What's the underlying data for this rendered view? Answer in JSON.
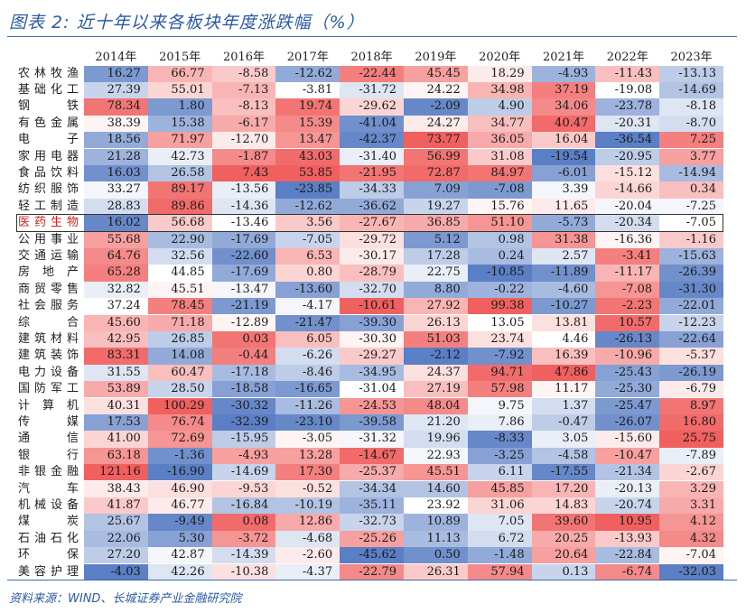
{
  "title": "图表 2:  近十年以来各板块年度涨跌幅（%）",
  "source": "资料来源：WIND、长城证券产业金融研究院",
  "chart_data": {
    "type": "heatmap",
    "highlight_row": "医药生物",
    "columns": [
      "2014年",
      "2015年",
      "2016年",
      "2017年",
      "2018年",
      "2019年",
      "2020年",
      "2021年",
      "2022年",
      "2023年"
    ],
    "rows": [
      {
        "name": "农林牧渔",
        "values": [
          16.27,
          66.77,
          -8.58,
          -12.62,
          -22.44,
          45.45,
          18.29,
          -4.93,
          -11.43,
          -13.13
        ]
      },
      {
        "name": "基础化工",
        "values": [
          27.39,
          55.01,
          -7.13,
          -3.81,
          -31.72,
          24.22,
          34.98,
          37.19,
          -19.08,
          -14.69
        ]
      },
      {
        "name": "钢铁",
        "values": [
          78.34,
          1.8,
          -8.13,
          19.74,
          -29.62,
          -2.09,
          4.9,
          34.06,
          -23.78,
          -8.18
        ]
      },
      {
        "name": "有色金属",
        "values": [
          38.39,
          15.38,
          -6.17,
          15.39,
          -41.04,
          24.27,
          34.77,
          40.47,
          -20.31,
          -8.7
        ]
      },
      {
        "name": "电子",
        "values": [
          18.56,
          71.97,
          -12.7,
          13.47,
          -42.37,
          73.77,
          36.05,
          16.04,
          -36.54,
          7.25
        ]
      },
      {
        "name": "家用电器",
        "values": [
          21.28,
          42.73,
          -1.87,
          43.03,
          -31.4,
          56.99,
          31.08,
          -19.54,
          -20.95,
          3.77
        ]
      },
      {
        "name": "食品饮料",
        "values": [
          16.03,
          26.58,
          7.43,
          53.85,
          -21.95,
          72.87,
          84.97,
          -6.01,
          -15.12,
          -14.94
        ]
      },
      {
        "name": "纺织服饰",
        "values": [
          33.27,
          89.17,
          -13.56,
          -23.85,
          -34.33,
          7.09,
          -7.08,
          3.39,
          -14.66,
          0.34
        ]
      },
      {
        "name": "轻工制造",
        "values": [
          28.83,
          89.86,
          -14.36,
          -12.62,
          -36.62,
          19.27,
          15.76,
          11.65,
          -20.04,
          -7.25
        ]
      },
      {
        "name": "医药生物",
        "values": [
          16.02,
          56.68,
          -13.46,
          3.56,
          -27.67,
          36.85,
          51.1,
          -5.73,
          -20.34,
          -7.05
        ]
      },
      {
        "name": "公用事业",
        "values": [
          55.68,
          22.9,
          -17.69,
          -7.05,
          -29.72,
          5.12,
          0.98,
          31.38,
          -16.36,
          -1.16
        ]
      },
      {
        "name": "交通运输",
        "values": [
          64.76,
          32.56,
          -22.6,
          6.53,
          -30.17,
          17.28,
          0.24,
          2.57,
          -3.41,
          -15.63
        ]
      },
      {
        "name": "房地产",
        "values": [
          65.28,
          44.85,
          -17.69,
          0.8,
          -28.79,
          22.75,
          -10.85,
          -11.89,
          -11.17,
          -26.39
        ]
      },
      {
        "name": "商贸零售",
        "values": [
          32.82,
          45.51,
          -13.47,
          -13.6,
          -32.7,
          8.8,
          -0.22,
          -4.6,
          -7.08,
          -31.3
        ]
      },
      {
        "name": "社会服务",
        "values": [
          37.24,
          78.45,
          -21.19,
          -4.17,
          -10.61,
          27.92,
          99.38,
          -10.27,
          -2.23,
          -22.01
        ]
      },
      {
        "name": "综合",
        "values": [
          45.6,
          71.18,
          -12.89,
          -21.47,
          -39.3,
          26.13,
          13.05,
          13.81,
          10.57,
          -12.23
        ]
      },
      {
        "name": "建筑材料",
        "values": [
          42.95,
          26.85,
          0.03,
          6.05,
          -30.3,
          51.03,
          23.74,
          4.46,
          -26.13,
          -22.64
        ]
      },
      {
        "name": "建筑装饰",
        "values": [
          83.31,
          14.08,
          -0.44,
          -6.26,
          -29.27,
          -2.12,
          -7.92,
          16.39,
          -10.96,
          -5.37
        ]
      },
      {
        "name": "电力设备",
        "values": [
          31.55,
          60.47,
          -17.18,
          -8.46,
          -34.95,
          24.37,
          94.71,
          47.86,
          -25.43,
          -26.19
        ]
      },
      {
        "name": "国防军工",
        "values": [
          53.89,
          28.5,
          -18.58,
          -16.65,
          -31.04,
          27.19,
          57.98,
          11.17,
          -25.3,
          -6.79
        ]
      },
      {
        "name": "计算机",
        "values": [
          40.31,
          100.29,
          -30.32,
          -11.26,
          -24.53,
          48.04,
          9.75,
          1.37,
          -25.47,
          8.97
        ]
      },
      {
        "name": "传媒",
        "values": [
          17.53,
          76.74,
          -32.39,
          -23.1,
          -39.58,
          21.2,
          7.86,
          -0.47,
          -26.07,
          16.8
        ]
      },
      {
        "name": "通信",
        "values": [
          41.0,
          72.69,
          -15.95,
          -3.05,
          -31.32,
          19.96,
          -8.33,
          3.05,
          -15.6,
          25.75
        ]
      },
      {
        "name": "银行",
        "values": [
          63.18,
          -1.36,
          -4.93,
          13.28,
          -14.67,
          22.93,
          -3.25,
          -4.58,
          -10.47,
          -7.89
        ]
      },
      {
        "name": "非银金融",
        "values": [
          121.16,
          -16.9,
          -14.69,
          17.3,
          -25.37,
          45.51,
          6.11,
          -17.55,
          -21.34,
          -2.67
        ]
      },
      {
        "name": "汽车",
        "values": [
          38.43,
          46.9,
          -9.53,
          -0.52,
          -34.34,
          14.6,
          45.85,
          17.2,
          -20.13,
          3.29
        ]
      },
      {
        "name": "机械设备",
        "values": [
          41.87,
          46.77,
          -16.84,
          -10.19,
          -35.11,
          23.92,
          31.06,
          14.83,
          -20.74,
          3.31
        ]
      },
      {
        "name": "煤炭",
        "values": [
          25.67,
          -9.49,
          0.08,
          12.86,
          -32.73,
          10.89,
          7.05,
          39.6,
          10.95,
          4.12
        ]
      },
      {
        "name": "石油石化",
        "values": [
          22.06,
          5.3,
          -3.72,
          -4.68,
          -25.26,
          11.13,
          6.72,
          20.25,
          -13.93,
          4.32
        ]
      },
      {
        "name": "环保",
        "values": [
          27.2,
          42.87,
          -14.39,
          -2.6,
          -45.62,
          0.5,
          -1.48,
          20.64,
          -22.84,
          -7.04
        ]
      },
      {
        "name": "美容护理",
        "values": [
          -4.03,
          42.26,
          -10.38,
          -4.37,
          -22.79,
          26.31,
          57.94,
          0.13,
          -6.74,
          -32.03
        ]
      }
    ],
    "color_scale": {
      "low": "#5b7fc4",
      "mid": "#ffffff",
      "high": "#f0605f"
    }
  }
}
